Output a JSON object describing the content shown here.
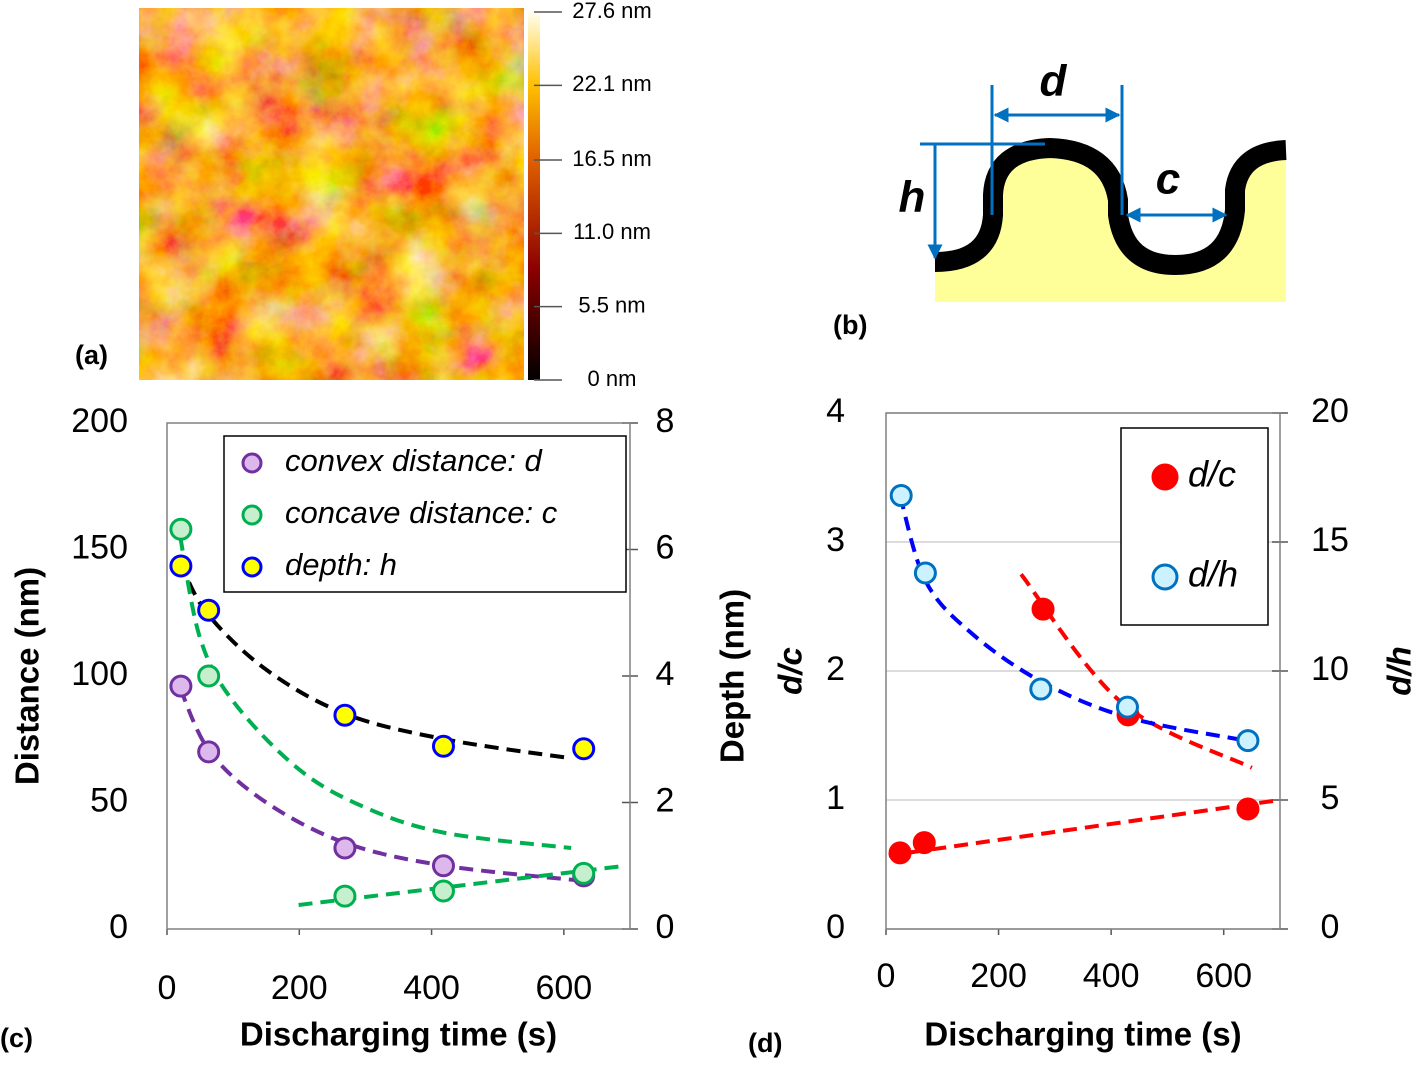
{
  "panel_labels": [
    "(a)",
    "(b)",
    "(c)",
    "(d)"
  ],
  "afm": {
    "colorbar": {
      "lim": [
        0,
        27.6
      ],
      "ticks": [
        {
          "value": 0,
          "label": "0 nm"
        },
        {
          "value": 5.5,
          "label": "5.5 nm"
        },
        {
          "value": 11.0,
          "label": "11.0 nm"
        },
        {
          "value": 16.5,
          "label": "16.5 nm"
        },
        {
          "value": 22.1,
          "label": "22.1 nm"
        },
        {
          "value": 27.6,
          "label": "27.6 nm"
        }
      ]
    }
  },
  "diagram": {
    "labels": {
      "d": "d",
      "h": "h",
      "c": "c"
    }
  },
  "chart_data": [
    {
      "type": "scatter",
      "xlabel": "Discharging time (s)",
      "ylabel": "Distance (nm)",
      "y2label": "Depth (nm)",
      "xlim": [
        0,
        700
      ],
      "xticks": [
        0,
        200,
        400,
        600
      ],
      "ylim": [
        0,
        200
      ],
      "yticks": [
        0,
        50,
        100,
        150,
        200
      ],
      "y2lim": [
        0,
        8
      ],
      "y2ticks": [
        0,
        2,
        4,
        6,
        8
      ],
      "grid": false,
      "series": [
        {
          "name": "convex distance: d",
          "color": "#7030a0",
          "fill": "#dcb8ec",
          "x": [
            21,
            63,
            269,
            418,
            630
          ],
          "values": [
            96,
            70,
            32,
            25,
            21
          ]
        },
        {
          "name": "concave distance:  c",
          "color": "#00b050",
          "fill": "#c6efce",
          "x": [
            21,
            63,
            269,
            418,
            630
          ],
          "values": [
            158,
            100,
            13,
            15,
            22
          ]
        },
        {
          "name": "depth: h",
          "color": "#0000ff",
          "fill": "#ffff00",
          "axis": "y2",
          "x": [
            21,
            63,
            269,
            418,
            630
          ],
          "values": [
            5.74,
            5.04,
            3.38,
            2.89,
            2.85
          ]
        }
      ],
      "fits": [
        {
          "color": "#000000",
          "axis": "y2",
          "x": [
            20,
            60,
            150,
            270,
            420,
            610
          ],
          "values": [
            5.8,
            5.0,
            4.1,
            3.4,
            3.0,
            2.7
          ]
        },
        {
          "color": "#7030a0",
          "x": [
            20,
            65,
            150,
            270,
            420,
            630
          ],
          "values": [
            95,
            70,
            50,
            34,
            25,
            19
          ]
        },
        {
          "color": "#00b050",
          "x": [
            20,
            50,
            100,
            200,
            300,
            420,
            611
          ],
          "values": [
            155,
            115,
            90,
            63,
            48,
            38,
            32
          ]
        },
        {
          "color": "#00b050",
          "x": [
            199,
            693
          ],
          "values": [
            9.5,
            25
          ]
        }
      ]
    },
    {
      "type": "scatter",
      "xlabel": "Discharging time (s)",
      "ylabel": "d/c",
      "y2label": "d/h",
      "xlim": [
        0,
        700
      ],
      "xticks": [
        0,
        200,
        400,
        600
      ],
      "ylim": [
        0,
        4
      ],
      "yticks": [
        0,
        1,
        2,
        3,
        4
      ],
      "y2lim": [
        0,
        20
      ],
      "y2ticks": [
        0,
        5,
        10,
        15,
        20
      ],
      "grid": true,
      "series": [
        {
          "name": "d/c",
          "color": "#ff0000",
          "fill": "#ff0000",
          "x": [
            25,
            68,
            279,
            430,
            643
          ],
          "values": [
            0.59,
            0.67,
            2.48,
            1.66,
            0.93
          ]
        },
        {
          "name": "d/h",
          "color": "#0070c0",
          "fill": "#ccf2ff",
          "axis": "y2",
          "x": [
            27,
            70,
            275,
            429,
            643
          ],
          "values": [
            16.8,
            13.8,
            9.3,
            8.6,
            7.3
          ]
        }
      ],
      "fits": [
        {
          "color": "#ff0000",
          "x": [
            240,
            420,
            650
          ],
          "values": [
            2.75,
            1.75,
            1.25
          ]
        },
        {
          "color": "#ff0000",
          "x": [
            5,
            700
          ],
          "values": [
            0.57,
            1.0
          ]
        },
        {
          "color": "#0000ff",
          "axis": "y2",
          "x": [
            25,
            70,
            150,
            275,
            430,
            640
          ],
          "values": [
            16.8,
            13.5,
            11.5,
            9.6,
            8.2,
            7.3
          ]
        }
      ]
    }
  ]
}
